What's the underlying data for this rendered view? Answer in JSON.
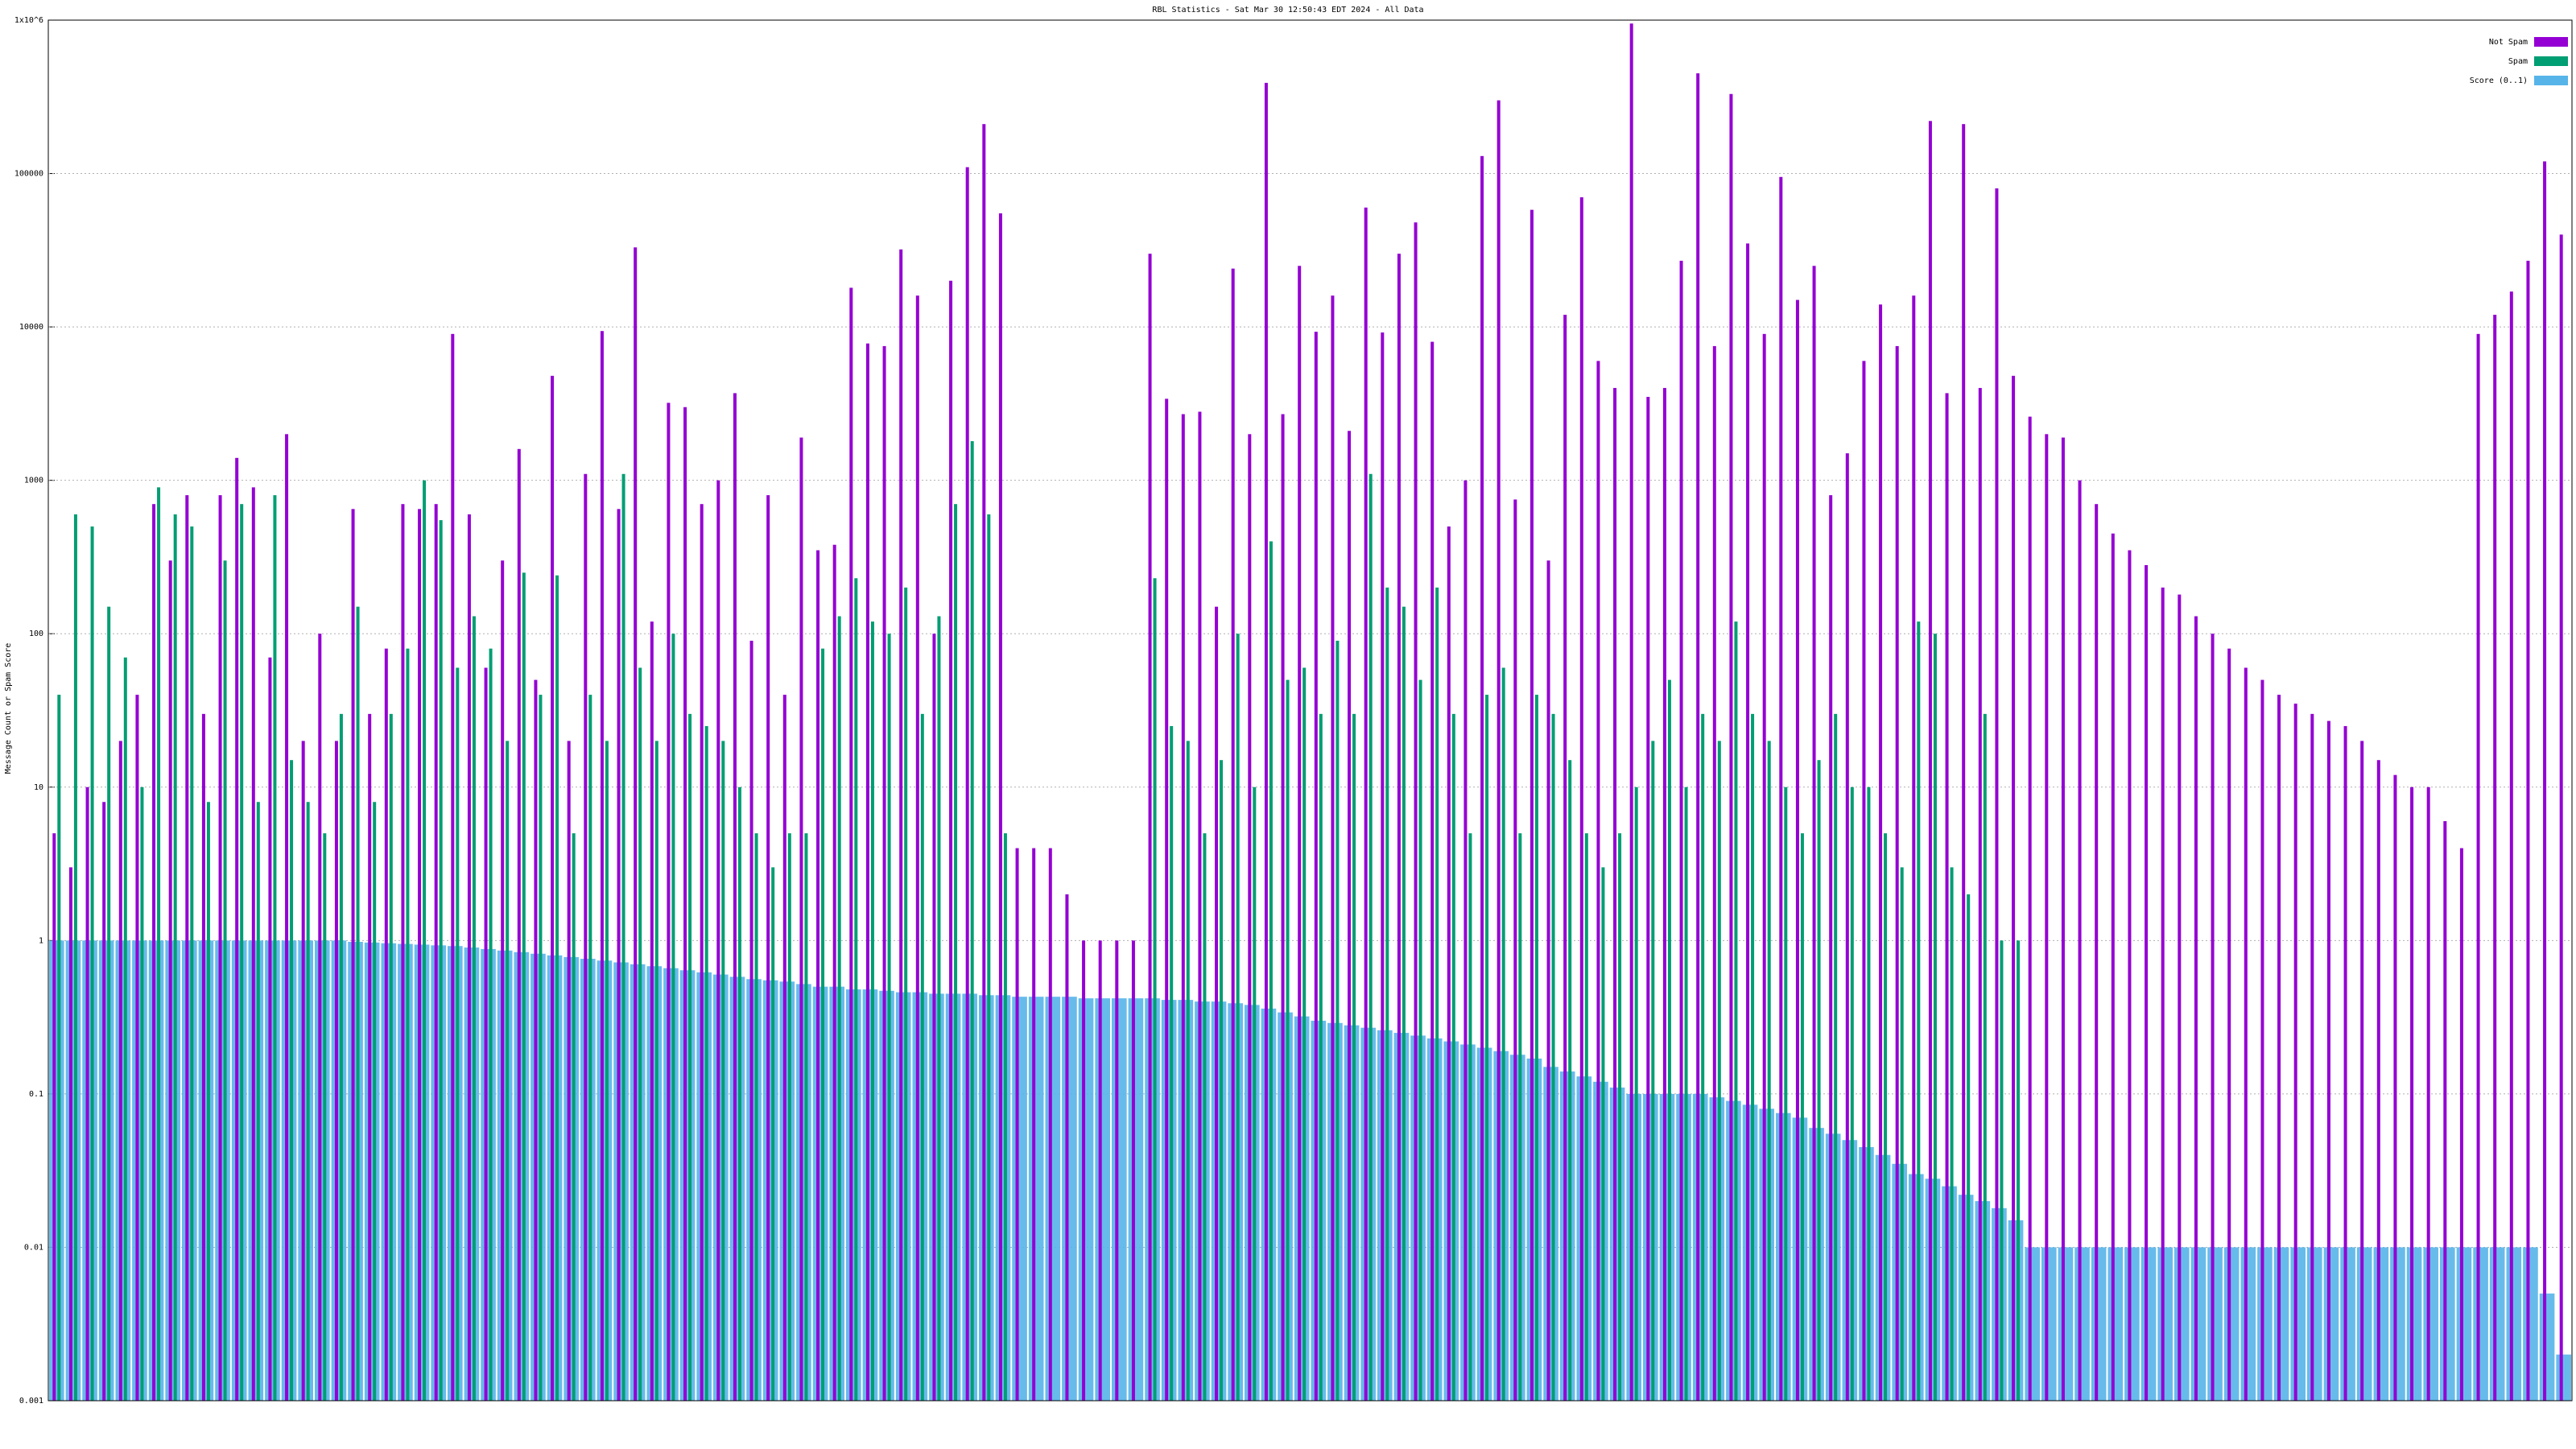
{
  "chart_data": {
    "type": "bar",
    "title": "RBL Statistics - Sat Mar 30 12:50:43 EDT 2024 - All Data",
    "y_label": "Message Count or Spam Score",
    "log_scale": true,
    "grid": true,
    "legend": "top-right",
    "ylim": [
      0.001,
      1000000
    ],
    "yticks": [
      0.001,
      0.01,
      0.1,
      1,
      10,
      100,
      1000,
      10000,
      100000,
      {
        "value": 1000000,
        "label": "1x10^6"
      }
    ],
    "series": [
      {
        "name": "Not Spam",
        "color": "#9400d3",
        "values": [
          5,
          3,
          10,
          8,
          20,
          40,
          700,
          300,
          800,
          30,
          800,
          1400,
          900,
          70,
          2000,
          20,
          100,
          20,
          650,
          30,
          80,
          700,
          650,
          700,
          9000,
          600,
          60,
          300,
          1600,
          50,
          4800,
          20,
          1100,
          9400,
          650,
          33000,
          120,
          3200,
          3000,
          700,
          1000,
          3700,
          90,
          800,
          40,
          1900,
          350,
          380,
          18000,
          7800,
          7500,
          32000,
          16000,
          100,
          20000,
          110000,
          210000,
          55000,
          4,
          4,
          4,
          2,
          1,
          1,
          1,
          1,
          30000,
          3400,
          2700,
          2800,
          150,
          24000,
          2000,
          390000,
          2700,
          25000,
          9300,
          16000,
          2100,
          60000,
          9200,
          30000,
          48000,
          8000,
          500,
          1000,
          130000,
          300000,
          750,
          58000,
          300,
          12000,
          70000,
          6000,
          4000,
          950000,
          3500,
          4000,
          27000,
          450000,
          7500,
          330000,
          35000,
          9000,
          95000,
          15000,
          25000,
          800,
          1500,
          6000,
          14000,
          7500,
          16000,
          220000,
          3700,
          210000,
          4000,
          80000,
          4800,
          2600,
          2000,
          1900,
          1000,
          700,
          450,
          350,
          280,
          200,
          180,
          130,
          100,
          80,
          60,
          50,
          40,
          35,
          30,
          27,
          25,
          20,
          15,
          12,
          10,
          10,
          6,
          4,
          9000,
          12000,
          17000,
          27000,
          120000,
          40000
        ]
      },
      {
        "name": "Spam",
        "color": "#009e73",
        "values": [
          40,
          600,
          500,
          150,
          70,
          10,
          900,
          600,
          500,
          8,
          300,
          700,
          8,
          800,
          15,
          8,
          5,
          30,
          150,
          8,
          30,
          80,
          1000,
          550,
          60,
          130,
          80,
          20,
          250,
          40,
          240,
          5,
          40,
          20,
          1100,
          60,
          20,
          100,
          30,
          25,
          20,
          10,
          5,
          3,
          5,
          5,
          80,
          130,
          230,
          120,
          100,
          200,
          30,
          130,
          700,
          1800,
          600,
          5,
          null,
          null,
          null,
          null,
          null,
          null,
          null,
          null,
          230,
          25,
          20,
          5,
          15,
          100,
          10,
          400,
          50,
          60,
          30,
          90,
          30,
          1100,
          200,
          150,
          50,
          200,
          30,
          5,
          40,
          60,
          5,
          40,
          30,
          15,
          5,
          3,
          5,
          10,
          20,
          50,
          10,
          30,
          20,
          120,
          30,
          20,
          10,
          5,
          15,
          30,
          10,
          10,
          5,
          3,
          120,
          100,
          3,
          2,
          30,
          1,
          1,
          null,
          null,
          null,
          null,
          null,
          null,
          null,
          null,
          null,
          null,
          null,
          null,
          null,
          null,
          null,
          null,
          null,
          null,
          null,
          null,
          null,
          null,
          null,
          null,
          null,
          null,
          null,
          null,
          null,
          null,
          null,
          null,
          null
        ]
      },
      {
        "name": "Score (0..1)",
        "color": "#56b4e9",
        "values": [
          1,
          1,
          1,
          1,
          1,
          1,
          1,
          1,
          1,
          1,
          1,
          1,
          1,
          1,
          1,
          1,
          1,
          1,
          0.98,
          0.97,
          0.96,
          0.95,
          0.94,
          0.93,
          0.92,
          0.9,
          0.88,
          0.86,
          0.84,
          0.82,
          0.8,
          0.78,
          0.76,
          0.74,
          0.72,
          0.7,
          0.68,
          0.66,
          0.64,
          0.62,
          0.6,
          0.58,
          0.56,
          0.55,
          0.54,
          0.52,
          0.5,
          0.5,
          0.48,
          0.48,
          0.47,
          0.46,
          0.46,
          0.45,
          0.45,
          0.45,
          0.44,
          0.44,
          0.43,
          0.43,
          0.43,
          0.43,
          0.42,
          0.42,
          0.42,
          0.42,
          0.42,
          0.41,
          0.41,
          0.4,
          0.4,
          0.39,
          0.38,
          0.36,
          0.34,
          0.32,
          0.3,
          0.29,
          0.28,
          0.27,
          0.26,
          0.25,
          0.24,
          0.23,
          0.22,
          0.21,
          0.2,
          0.19,
          0.18,
          0.17,
          0.15,
          0.14,
          0.13,
          0.12,
          0.11,
          0.1,
          0.1,
          0.1,
          0.1,
          0.1,
          0.095,
          0.09,
          0.085,
          0.08,
          0.075,
          0.07,
          0.06,
          0.055,
          0.05,
          0.045,
          0.04,
          0.035,
          0.03,
          0.028,
          0.025,
          0.022,
          0.02,
          0.018,
          0.015,
          0.01,
          0.01,
          0.01,
          0.01,
          0.01,
          0.01,
          0.01,
          0.01,
          0.01,
          0.01,
          0.01,
          0.01,
          0.01,
          0.01,
          0.01,
          0.01,
          0.01,
          0.01,
          0.01,
          0.01,
          0.01,
          0.01,
          0.01,
          0.01,
          0.01,
          0.01,
          0.01,
          0.01,
          0.01,
          0.01,
          0.01,
          0.005,
          0.002
        ]
      }
    ]
  }
}
